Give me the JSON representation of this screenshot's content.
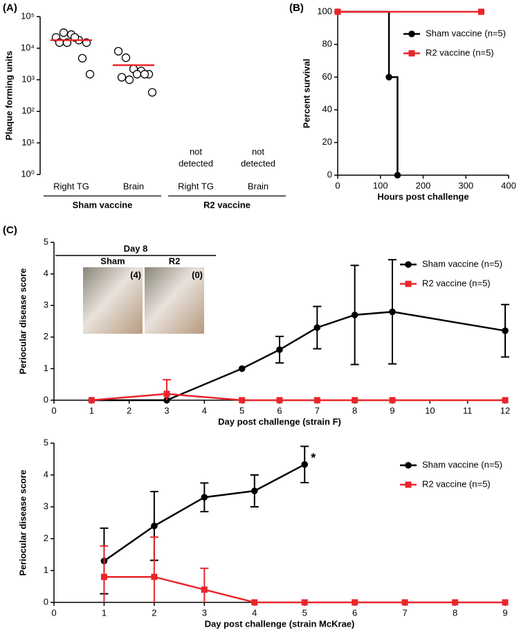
{
  "chart_data": [
    {
      "type": "strip",
      "panel_label": "(A)",
      "y_label": "Plaque forming units",
      "categories": [
        "Right TG",
        "Brain",
        "Right TG",
        "Brain"
      ],
      "groups": [
        {
          "name": "Sham vaccine",
          "size": 2
        },
        {
          "name": "R2 vaccine",
          "size": 2
        }
      ],
      "points": [
        [
          22000,
          31000,
          27000,
          18000,
          15000,
          15000,
          15000,
          22000,
          4800,
          1500
        ],
        [
          8000,
          5000,
          2200,
          1900,
          1500,
          1200,
          1000,
          1500,
          1500,
          400
        ],
        [],
        []
      ],
      "center_values": [
        18000,
        2900,
        null,
        null
      ],
      "point_color": "#000000",
      "center_color": "#e8262a",
      "annotations": [
        null,
        null,
        [
          "not",
          "detected"
        ],
        [
          "not",
          "detected"
        ]
      ],
      "log_scale": true,
      "ylim": [
        1,
        100000
      ],
      "yticks": [
        {
          "value": 1,
          "label": "10⁰"
        },
        {
          "value": 10,
          "label": "10¹"
        },
        {
          "value": 100,
          "label": "10²"
        },
        {
          "value": 1000,
          "label": "10³"
        },
        {
          "value": 10000,
          "label": "10⁴"
        },
        {
          "value": 100000,
          "label": "10⁵"
        }
      ]
    },
    {
      "type": "line",
      "step": true,
      "panel_label": "(B)",
      "x_label": "Hours post challenge",
      "y_label": "Percent survival",
      "series": [
        {
          "name": "Sham vaccine (n=5)",
          "color": "#000000",
          "marker": "circle",
          "x": [
            0,
            120,
            140
          ],
          "values": [
            100,
            60,
            0
          ]
        },
        {
          "name": "R2 vaccine (n=5)",
          "color": "#e8262a",
          "marker": "square",
          "x": [
            0,
            336
          ],
          "values": [
            100,
            100
          ]
        }
      ],
      "legend": "upper right",
      "xlim": [
        0,
        400
      ],
      "xticks": [
        0,
        100,
        200,
        300,
        400
      ],
      "ylim": [
        0,
        100
      ],
      "yticks": [
        0,
        20,
        40,
        60,
        80,
        100
      ]
    },
    {
      "type": "line",
      "step": false,
      "panel_label": "(C)",
      "x_label": "Day post challenge (strain F)",
      "y_label": "Periocular disease score",
      "inset": {
        "title": "Day 8",
        "panels": [
          {
            "label": "Sham",
            "score": "(4)"
          },
          {
            "label": "R2",
            "score": "(0)"
          }
        ]
      },
      "series": [
        {
          "name": "Sham vaccine (n=5)",
          "color": "#000000",
          "marker": "circle",
          "x": [
            1,
            3,
            5,
            6,
            7,
            8,
            9,
            12
          ],
          "values": [
            0,
            0,
            1.0,
            1.6,
            2.3,
            2.7,
            2.8,
            2.2
          ],
          "errors": [
            null,
            null,
            null,
            0.42,
            0.67,
            1.57,
            1.65,
            0.83
          ]
        },
        {
          "name": "R2 vaccine (n=5)",
          "color": "#e8262a",
          "marker": "square",
          "x": [
            1,
            3,
            5,
            6,
            7,
            8,
            9,
            12
          ],
          "values": [
            0,
            0.2,
            0,
            0,
            0,
            0,
            0,
            0
          ],
          "errors": [
            null,
            0.45,
            null,
            null,
            null,
            null,
            null,
            null
          ]
        }
      ],
      "legend": "upper right",
      "xlim": [
        0,
        12
      ],
      "xticks": [
        0,
        1,
        2,
        3,
        4,
        5,
        6,
        7,
        8,
        9,
        10,
        11,
        12
      ],
      "ylim": [
        0,
        5
      ],
      "yticks": [
        0,
        1,
        2,
        3,
        4,
        5
      ]
    },
    {
      "type": "line",
      "step": false,
      "x_label": "Day post challenge (strain McKrae)",
      "y_label": "Periocular disease score",
      "series": [
        {
          "name": "Sham vaccine (n=5)",
          "color": "#000000",
          "marker": "circle",
          "x": [
            1,
            2,
            3,
            4,
            5
          ],
          "values": [
            1.3,
            2.4,
            3.3,
            3.5,
            4.33
          ],
          "errors": [
            1.03,
            1.08,
            0.45,
            0.5,
            0.57
          ],
          "point_labels": [
            null,
            null,
            null,
            null,
            "*"
          ]
        },
        {
          "name": "R2 vaccine (n=5)",
          "color": "#e8262a",
          "marker": "square",
          "x": [
            1,
            2,
            3,
            4,
            5,
            6,
            7,
            8,
            9
          ],
          "values": [
            0.8,
            0.8,
            0.4,
            0,
            0,
            0,
            0,
            0,
            0
          ],
          "errors": [
            0.97,
            1.25,
            0.67,
            null,
            null,
            null,
            null,
            null,
            null
          ]
        }
      ],
      "legend": "upper right",
      "xlim": [
        0,
        9
      ],
      "xticks": [
        0,
        1,
        2,
        3,
        4,
        5,
        6,
        7,
        8,
        9
      ],
      "ylim": [
        0,
        5
      ],
      "yticks": [
        0,
        1,
        2,
        3,
        4,
        5
      ]
    }
  ]
}
